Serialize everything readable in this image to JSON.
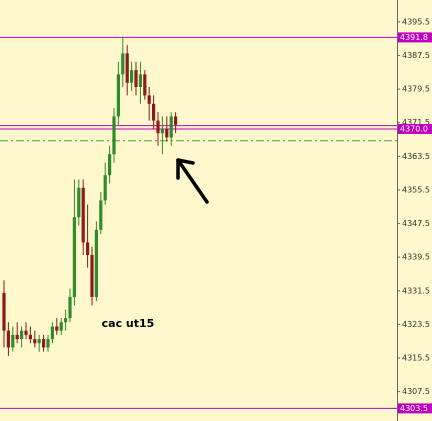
{
  "chart_data": {
    "type": "candlestick",
    "annotation": "cac ut15",
    "open": [
      4331,
      4322,
      4318,
      4321,
      4320,
      4322,
      4321,
      4320,
      4319,
      4320,
      4318,
      4320,
      4323,
      4322,
      4324,
      4325,
      4330,
      4349,
      4356,
      4343,
      4340,
      4330,
      4346,
      4353,
      4359,
      4364,
      4373,
      4383,
      4388,
      4381,
      4384,
      4380,
      4383,
      4378,
      4376,
      4372,
      4369,
      4370,
      4368,
      4373
    ],
    "high": [
      4334,
      4324,
      4323,
      4324,
      4323,
      4324,
      4323,
      4322,
      4321,
      4321,
      4321,
      4324,
      4325,
      4325,
      4327,
      4332,
      4358,
      4358,
      4358,
      4352,
      4342,
      4348,
      4355,
      4362,
      4366,
      4375,
      4386,
      4392,
      4390,
      4386,
      4386,
      4386,
      4384,
      4380,
      4378,
      4374,
      4373,
      4373,
      4374,
      4374
    ],
    "low": [
      4318,
      4316,
      4317,
      4319,
      4318,
      4320,
      4319,
      4318,
      4317,
      4317,
      4317,
      4319,
      4321,
      4321,
      4322,
      4324,
      4328,
      4347,
      4340,
      4337,
      4328,
      4329,
      4345,
      4352,
      4357,
      4362,
      4371,
      4380,
      4378,
      4379,
      4378,
      4376,
      4377,
      4372,
      4370,
      4366,
      4364,
      4367,
      4366,
      4369
    ],
    "close": [
      4322,
      4318,
      4321,
      4320,
      4322,
      4321,
      4320,
      4319,
      4320,
      4318,
      4320,
      4323,
      4322,
      4324,
      4325,
      4330,
      4349,
      4356,
      4343,
      4340,
      4330,
      4346,
      4353,
      4359,
      4364,
      4373,
      4383,
      4388,
      4381,
      4384,
      4380,
      4383,
      4378,
      4376,
      4372,
      4369,
      4370,
      4368,
      4373,
      4371
    ],
    "up_color": "#2e8b2e",
    "down_color": "#8b1a1a",
    "lines": [
      {
        "value": 4391.8,
        "label": "4391.8",
        "color": "#c000c0",
        "style": "solid"
      },
      {
        "value": 4370.8,
        "color": "#c000c0",
        "style": "solid"
      },
      {
        "value": 4370.0,
        "label": "4370.0",
        "color": "#c000c0",
        "style": "solid"
      },
      {
        "value": 4367.2,
        "color": "#33aa33",
        "style": "dashdot"
      },
      {
        "value": 4303.5,
        "label": "4303.5",
        "color": "#c000c0",
        "style": "solid"
      }
    ],
    "ylim": [
      4300.5,
      4400.7
    ],
    "yticks": [
      {
        "value": 4395.5,
        "label": "4395.5"
      },
      {
        "value": 4387.5,
        "label": "4387.5"
      },
      {
        "value": 4379.5,
        "label": "4379.5"
      },
      {
        "value": 4371.5,
        "label": "4371.5"
      },
      {
        "value": 4363.5,
        "label": "4363.5"
      },
      {
        "value": 4355.5,
        "label": "4355.5"
      },
      {
        "value": 4347.5,
        "label": "4347.5"
      },
      {
        "value": 4339.5,
        "label": "4339.5"
      },
      {
        "value": 4331.5,
        "label": "4331.5"
      },
      {
        "value": 4323.5,
        "label": "4323.5"
      },
      {
        "value": 4315.5,
        "label": "4315.5"
      },
      {
        "value": 4307.5,
        "label": "4307.5"
      }
    ]
  }
}
